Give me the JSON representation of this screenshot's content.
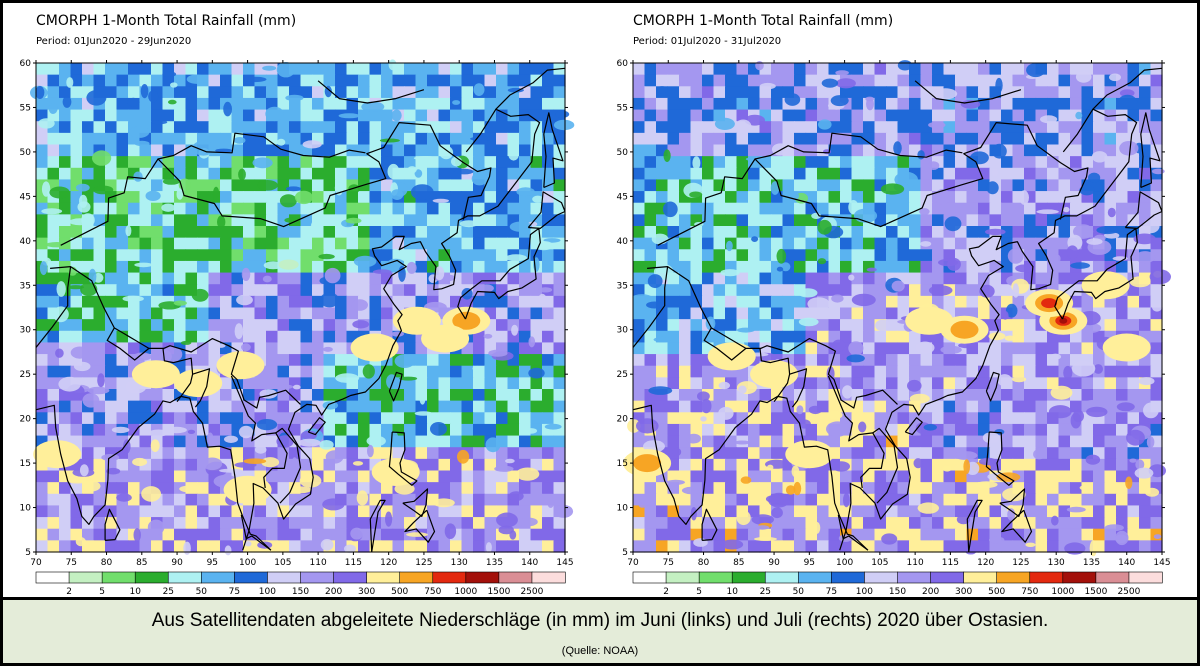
{
  "panels": [
    {
      "title": "CMORPH 1-Month Total Rainfall (mm)",
      "period": "Period: 01Jun2020 - 29Jun2020",
      "dominant": "june",
      "hotspots": [
        {
          "lon": 124,
          "lat": 31,
          "level": 8
        },
        {
          "lon": 131,
          "lat": 31,
          "level": 10
        },
        {
          "lon": 128,
          "lat": 29,
          "level": 9
        },
        {
          "lon": 93,
          "lat": 24,
          "level": 8
        },
        {
          "lon": 87,
          "lat": 25,
          "level": 7
        },
        {
          "lon": 73,
          "lat": 16,
          "level": 8
        },
        {
          "lon": 100,
          "lat": 12,
          "level": 8
        },
        {
          "lon": 121,
          "lat": 14,
          "level": 8
        },
        {
          "lon": 118,
          "lat": 28,
          "level": 7
        },
        {
          "lon": 99,
          "lat": 26,
          "level": 7
        }
      ]
    },
    {
      "title": "CMORPH 1-Month Total Rainfall (mm)",
      "period": "Period: 01Jul2020 - 31Jul2020",
      "dominant": "july",
      "hotspots": [
        {
          "lon": 131,
          "lat": 31,
          "level": 12
        },
        {
          "lon": 129,
          "lat": 33,
          "level": 11
        },
        {
          "lon": 117,
          "lat": 30,
          "level": 10
        },
        {
          "lon": 112,
          "lat": 31,
          "level": 9
        },
        {
          "lon": 72,
          "lat": 15,
          "level": 10
        },
        {
          "lon": 90,
          "lat": 25,
          "level": 9
        },
        {
          "lon": 84,
          "lat": 27,
          "level": 8
        },
        {
          "lon": 95,
          "lat": 16,
          "level": 8
        },
        {
          "lon": 137,
          "lat": 35,
          "level": 9
        },
        {
          "lon": 140,
          "lat": 28,
          "level": 8
        }
      ]
    }
  ],
  "axes": {
    "lon_ticks": [
      "70",
      "75",
      "80",
      "85",
      "90",
      "95",
      "100",
      "105",
      "110",
      "115",
      "120",
      "125",
      "130",
      "135",
      "140",
      "145"
    ],
    "lat_ticks": [
      "5",
      "10",
      "15",
      "20",
      "25",
      "30",
      "35",
      "40",
      "45",
      "50",
      "55",
      "60"
    ],
    "lon_range": [
      70,
      145
    ],
    "lat_range": [
      5,
      60
    ]
  },
  "legend": {
    "labels": [
      "2",
      "5",
      "10",
      "25",
      "50",
      "75",
      "100",
      "150",
      "200",
      "300",
      "500",
      "750",
      "1000",
      "1500",
      "2500"
    ],
    "colors": [
      "#ffffff",
      "#c4f0c2",
      "#71de6c",
      "#2bad2e",
      "#aef1f2",
      "#5ab3f0",
      "#1f69d8",
      "#d0cef6",
      "#a497f0",
      "#8169e8",
      "#ffef9a",
      "#f7a524",
      "#e3290f",
      "#a3100a",
      "#da8e95",
      "#fcdddd"
    ]
  },
  "caption": {
    "text": "Aus Satellitendaten abgeleitete Niederschläge (in mm) im Juni (links) und Juli (rechts) 2020 über Ostasien.",
    "source": "(Quelle: NOAA)"
  }
}
